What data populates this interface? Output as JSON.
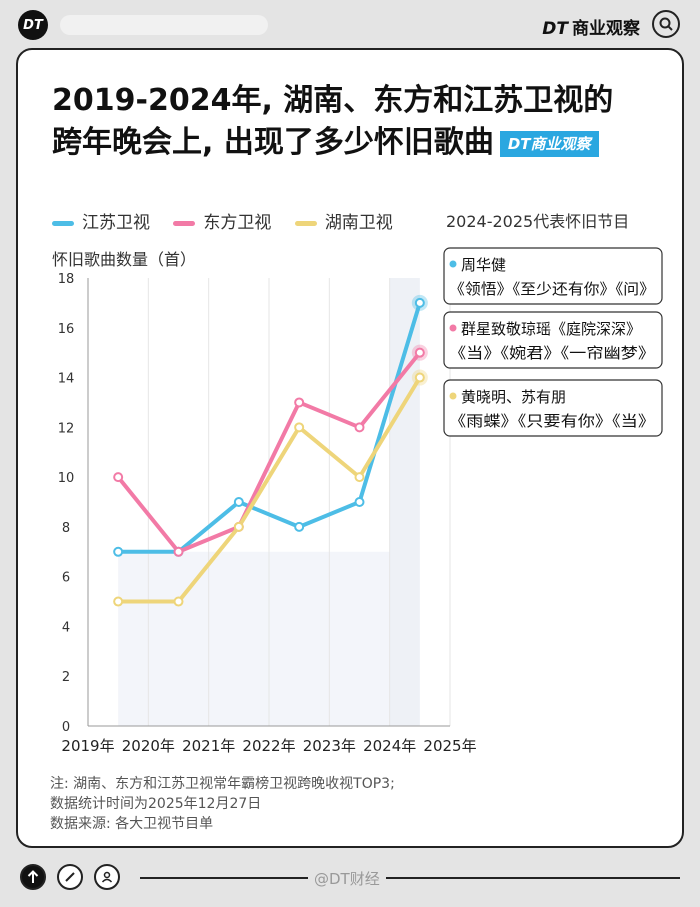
{
  "header": {
    "logo_text": "DT",
    "brand_prefix": "DT",
    "brand_name": "商业观察"
  },
  "title": {
    "line1": "2019-2024年, 湖南、东方和江苏卫视的",
    "line2": "跨年晚会上, 出现了多少怀旧歌曲",
    "badge_prefix": "DT",
    "badge_name": "商业观察"
  },
  "annotation_header": "2024-2025代表怀旧节目",
  "annotations": [
    {
      "series": "江苏卫视",
      "color": "#4dbde6",
      "line1": "周华健",
      "line2": "《领悟》《至少还有你》《问》"
    },
    {
      "series": "东方卫视",
      "color": "#f27aa6",
      "line1": "群星致敬琼瑶《庭院深深》",
      "line2": "《当》《婉君》《一帘幽梦》"
    },
    {
      "series": "湖南卫视",
      "color": "#eed57a",
      "line1": "黄晓明、苏有朋",
      "line2": "《雨蝶》《只要有你》《当》"
    }
  ],
  "chart_data": {
    "type": "line",
    "ylabel": "怀旧歌曲数量（首）",
    "ylim": [
      0,
      18
    ],
    "yticks": [
      0,
      2,
      4,
      6,
      8,
      10,
      12,
      14,
      16,
      18
    ],
    "x_ticks": [
      "2019年",
      "2020年",
      "2021年",
      "2022年",
      "2023年",
      "2024年",
      "2025年"
    ],
    "x": [
      2019.5,
      2020.5,
      2021.5,
      2022.5,
      2023.5,
      2024.5
    ],
    "series": [
      {
        "name": "江苏卫视",
        "color": "#4dbde6",
        "values": [
          7,
          7,
          9,
          8,
          9,
          17
        ]
      },
      {
        "name": "东方卫视",
        "color": "#f27aa6",
        "values": [
          10,
          7,
          8,
          13,
          12,
          15
        ]
      },
      {
        "name": "湖南卫视",
        "color": "#eed57a",
        "values": [
          5,
          5,
          8,
          12,
          10,
          14
        ]
      }
    ],
    "legend": "top-left"
  },
  "notes": [
    "注: 湖南、东方和江苏卫视常年霸榜卫视跨晚收视TOP3;",
    "数据统计时间为2025年12月27日",
    "数据来源: 各大卫视节目单"
  ],
  "footer": {
    "weibo": "@DT财经"
  },
  "icons": {
    "top_button": "arrow-up-icon",
    "edit": "pencil-icon",
    "profile": "user-icon",
    "search": "search-icon"
  }
}
